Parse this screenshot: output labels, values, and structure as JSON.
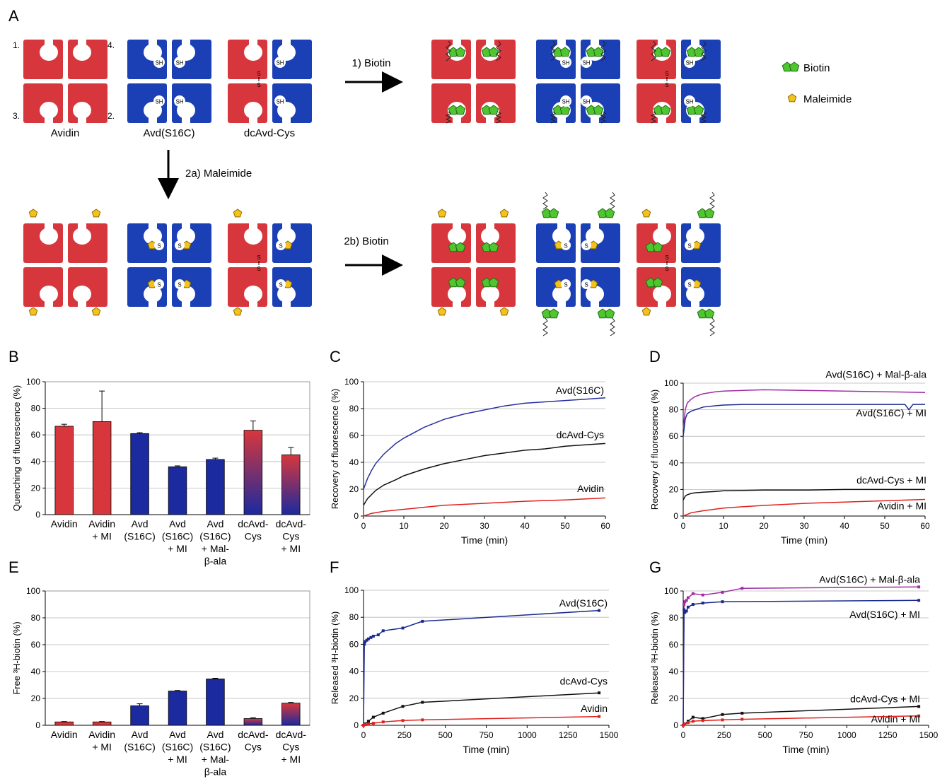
{
  "panel_labels": [
    "A",
    "B",
    "C",
    "D",
    "E",
    "F",
    "G"
  ],
  "schematic": {
    "subunit_numbers": [
      "1.",
      "2.",
      "3.",
      "4."
    ],
    "protein_labels": [
      "Avidin",
      "Avd(S16C)",
      "dcAvd-Cys"
    ],
    "thiol_label": "SH",
    "disulfide_label": "S\nS",
    "thioether_label": "S",
    "step_labels": [
      "1) Biotin",
      "2a) Maleimide",
      "2b) Biotin"
    ],
    "legend": [
      "Biotin",
      "Maleimide"
    ],
    "colors": {
      "avidin": "#d7373c",
      "avd_s16c": "#1b3fb5",
      "biotin": "#4fc52f",
      "maleimide": "#f4c21c"
    }
  },
  "chart_data": [
    {
      "panel": "B",
      "type": "bar",
      "categories": [
        "Avidin",
        "Avidin\n+ MI",
        "Avd\n(S16C)",
        "Avd\n(S16C)\n+ MI",
        "Avd\n(S16C)\n+ Mal-\nβ-ala",
        "dcAvd-\nCys",
        "dcAvd-\nCys\n+ MI"
      ],
      "values": [
        66.5,
        70,
        61,
        36,
        41.5,
        63.5,
        45
      ],
      "errors": [
        1.5,
        23,
        0.7,
        0.7,
        1,
        7,
        5.5
      ],
      "fill": [
        "red",
        "red",
        "blue",
        "blue",
        "blue",
        "gradient",
        "gradient"
      ],
      "ylabel": "Quenching of fluorescence (%)",
      "ylim": [
        0,
        100
      ],
      "yticks": [
        0,
        20,
        40,
        60,
        80,
        100
      ]
    },
    {
      "panel": "C",
      "type": "line",
      "xlabel": "Time (min)",
      "ylabel": "Recovery of fluorescence (%)",
      "xlim": [
        0,
        60
      ],
      "ylim": [
        0,
        100
      ],
      "xticks": [
        0,
        10,
        20,
        30,
        40,
        50,
        60
      ],
      "yticks": [
        0,
        20,
        40,
        60,
        80,
        100
      ],
      "series": [
        {
          "name": "Avd(S16C)",
          "color": "#2a2f9e",
          "x": [
            0,
            1,
            2,
            3,
            5,
            8,
            10,
            15,
            20,
            25,
            30,
            35,
            40,
            45,
            50,
            55,
            60
          ],
          "y": [
            20,
            28,
            34,
            39,
            46,
            54,
            58,
            66,
            72,
            76,
            79,
            82,
            84,
            85,
            86,
            87,
            88
          ]
        },
        {
          "name": "dcAvd-Cys",
          "color": "#111111",
          "x": [
            0,
            1,
            2,
            3,
            5,
            8,
            10,
            15,
            20,
            25,
            30,
            35,
            40,
            45,
            50,
            55,
            60
          ],
          "y": [
            8,
            13,
            16,
            19,
            23,
            27,
            30,
            35,
            39,
            42,
            45,
            47,
            49,
            50,
            52,
            53,
            54
          ]
        },
        {
          "name": "Avidin",
          "color": "#e0201c",
          "x": [
            0,
            2,
            5,
            10,
            15,
            20,
            30,
            40,
            50,
            60
          ],
          "y": [
            0,
            2,
            3.5,
            5,
            6.5,
            8,
            9.5,
            11,
            12,
            13.5
          ]
        }
      ]
    },
    {
      "panel": "D",
      "type": "line",
      "xlabel": "Time (min)",
      "ylabel": "Recovery of fluorescence (%)",
      "xlim": [
        0,
        60
      ],
      "ylim": [
        0,
        100
      ],
      "xticks": [
        0,
        10,
        20,
        30,
        40,
        50,
        60
      ],
      "yticks": [
        0,
        20,
        40,
        60,
        80,
        100
      ],
      "series": [
        {
          "name": "Avd(S16C) + Mal-β-ala",
          "color": "#a02ca6",
          "x": [
            0,
            0.5,
            1,
            2,
            3,
            5,
            8,
            10,
            15,
            20,
            30,
            40,
            50,
            60
          ],
          "y": [
            65,
            80,
            85,
            88,
            90,
            92,
            93.5,
            94,
            94.5,
            95,
            94.5,
            94,
            93.5,
            93
          ]
        },
        {
          "name": "Avd(S16C) + MI",
          "color": "#1a2a8e",
          "x": [
            0,
            0.5,
            1,
            2,
            3,
            5,
            8,
            10,
            15,
            20,
            30,
            40,
            50,
            55,
            56,
            57,
            60
          ],
          "y": [
            60,
            73,
            77,
            79,
            80,
            82,
            83,
            83.5,
            84,
            84,
            84,
            84,
            84,
            84,
            80,
            84,
            84
          ]
        },
        {
          "name": "dcAvd-Cys + MI",
          "color": "#111111",
          "x": [
            0,
            0.5,
            1,
            2,
            3,
            5,
            8,
            10,
            20,
            30,
            40,
            50,
            60
          ],
          "y": [
            12,
            15,
            16,
            17,
            17.5,
            18,
            18.5,
            19,
            19.5,
            19.5,
            20,
            20,
            20
          ]
        },
        {
          "name": "Avidin + MI",
          "color": "#e0201c",
          "x": [
            0,
            2,
            5,
            10,
            15,
            20,
            30,
            40,
            50,
            60
          ],
          "y": [
            0,
            2.5,
            4,
            6,
            7,
            8,
            9.5,
            10.5,
            11.5,
            12.5
          ]
        }
      ]
    },
    {
      "panel": "E",
      "type": "bar",
      "categories": [
        "Avidin",
        "Avidin\n+ MI",
        "Avd\n(S16C)",
        "Avd\n(S16C)\n+ MI",
        "Avd\n(S16C)\n+ Mal-\nβ-ala",
        "dcAvd-\nCys",
        "dcAvd-\nCys\n+ MI"
      ],
      "values": [
        2.5,
        2.5,
        14.5,
        25.5,
        34.5,
        5,
        16.5
      ],
      "errors": [
        0.3,
        0.3,
        1.5,
        0.4,
        0.5,
        0.6,
        0.5
      ],
      "fill": [
        "red",
        "red",
        "blue",
        "blue",
        "blue",
        "gradient",
        "gradient"
      ],
      "ylabel": "Free ³H-biotin (%)",
      "ylim": [
        0,
        100
      ],
      "yticks": [
        0,
        20,
        40,
        60,
        80,
        100
      ]
    },
    {
      "panel": "F",
      "type": "line",
      "xlabel": "Time (min)",
      "ylabel": "Released ³H-biotin (%)",
      "xlim": [
        0,
        1500
      ],
      "ylim": [
        0,
        100
      ],
      "xticks": [
        0,
        250,
        500,
        750,
        1000,
        1250,
        1500
      ],
      "yticks": [
        0,
        20,
        40,
        60,
        80,
        100
      ],
      "series": [
        {
          "name": "Avd(S16C)",
          "color": "#1a2a8e",
          "markers": true,
          "x": [
            0,
            5,
            10,
            20,
            30,
            45,
            60,
            90,
            120,
            240,
            360,
            1440
          ],
          "y": [
            0,
            60,
            62,
            63,
            64,
            65,
            66,
            67,
            70,
            72,
            77,
            85
          ]
        },
        {
          "name": "dcAvd-Cys",
          "color": "#111111",
          "markers": true,
          "x": [
            0,
            10,
            30,
            60,
            120,
            240,
            360,
            1440
          ],
          "y": [
            0,
            1,
            3,
            6,
            9,
            14,
            17,
            24
          ]
        },
        {
          "name": "Avidin",
          "color": "#e0201c",
          "markers": true,
          "x": [
            0,
            10,
            30,
            60,
            120,
            240,
            360,
            1440
          ],
          "y": [
            0,
            0.5,
            1,
            1.5,
            2.5,
            3.5,
            4,
            6.5
          ]
        }
      ]
    },
    {
      "panel": "G",
      "type": "line",
      "xlabel": "Time (min)",
      "ylabel": "Released ³H-biotin (%)",
      "xlim": [
        0,
        1500
      ],
      "ylim": [
        0,
        100
      ],
      "xticks": [
        0,
        250,
        500,
        750,
        1000,
        1250,
        1500
      ],
      "yticks": [
        0,
        20,
        40,
        60,
        80,
        100
      ],
      "series": [
        {
          "name": "Avd(S16C) + Mal-β-ala",
          "color": "#a02ca6",
          "markers": true,
          "x": [
            0,
            5,
            10,
            20,
            30,
            60,
            120,
            240,
            360,
            1440
          ],
          "y": [
            0,
            90,
            92,
            93,
            95,
            98,
            97,
            99,
            102,
            103
          ]
        },
        {
          "name": "Avd(S16C) + MI",
          "color": "#1a2a8e",
          "markers": true,
          "x": [
            0,
            5,
            10,
            20,
            30,
            60,
            120,
            240,
            1440
          ],
          "y": [
            0,
            86,
            84,
            85,
            88,
            90,
            91,
            92,
            93
          ]
        },
        {
          "name": "dcAvd-Cys + MI",
          "color": "#111111",
          "markers": true,
          "x": [
            0,
            10,
            30,
            60,
            120,
            240,
            360,
            1440
          ],
          "y": [
            0,
            1,
            3,
            6,
            5,
            8,
            9,
            14
          ]
        },
        {
          "name": "Avidin + MI",
          "color": "#e0201c",
          "markers": true,
          "x": [
            0,
            10,
            30,
            60,
            120,
            240,
            360,
            1440
          ],
          "y": [
            0,
            1,
            2,
            3,
            3.5,
            4,
            4.5,
            7
          ]
        }
      ]
    }
  ]
}
